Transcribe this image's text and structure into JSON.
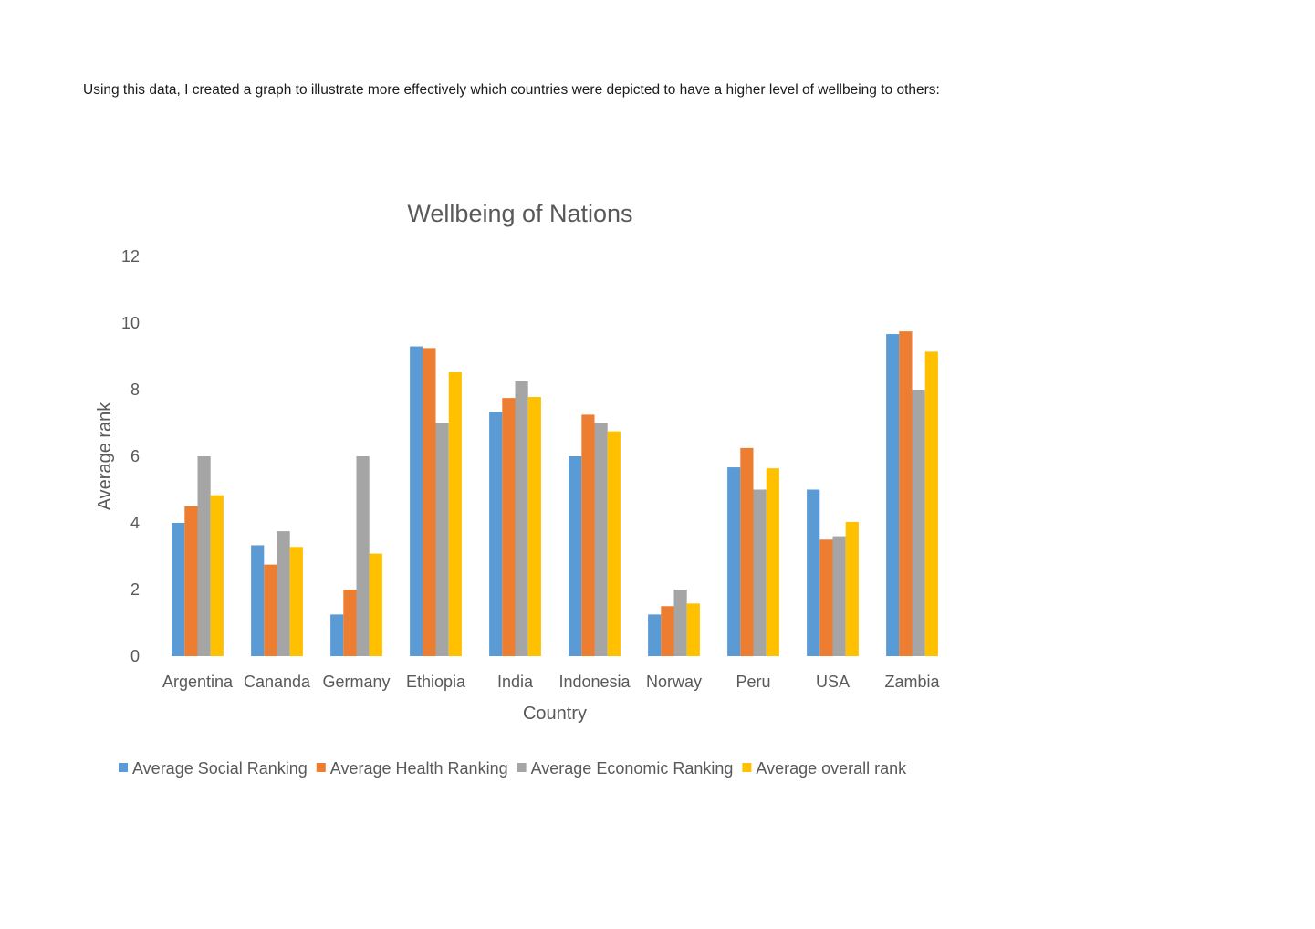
{
  "intro_text": "Using this data, I created a graph to illustrate more effectively which countries were depicted to have a higher level of wellbeing to others:",
  "chart_data": {
    "type": "bar",
    "title": "Wellbeing of Nations",
    "xlabel": "Country",
    "ylabel": "Average rank",
    "ylim": [
      0,
      12
    ],
    "yticks": [
      0,
      2,
      4,
      6,
      8,
      10,
      12
    ],
    "grid": false,
    "legend_position": "bottom",
    "categories": [
      "Argentina",
      "Cananda",
      "Germany",
      "Ethiopia",
      "India",
      "Indonesia",
      "Norway",
      "Peru",
      "USA",
      "Zambia"
    ],
    "series": [
      {
        "name": "Average Social Ranking",
        "color": "#5b9bd5",
        "values": [
          4.0,
          3.33,
          1.25,
          9.3,
          7.33,
          6.0,
          1.25,
          5.67,
          5.0,
          9.67
        ]
      },
      {
        "name": "Average Health Ranking",
        "color": "#ed7d31",
        "values": [
          4.5,
          2.75,
          2.0,
          9.25,
          7.75,
          7.25,
          1.5,
          6.25,
          3.5,
          9.75
        ]
      },
      {
        "name": "Average Economic Ranking",
        "color": "#a5a5a5",
        "values": [
          6.0,
          3.75,
          6.0,
          7.0,
          8.25,
          7.0,
          2.0,
          5.0,
          3.6,
          8.0
        ]
      },
      {
        "name": "Average overall rank",
        "color": "#ffc000",
        "values": [
          4.83,
          3.28,
          3.08,
          8.52,
          7.78,
          6.75,
          1.58,
          5.64,
          4.03,
          9.14
        ]
      }
    ]
  }
}
